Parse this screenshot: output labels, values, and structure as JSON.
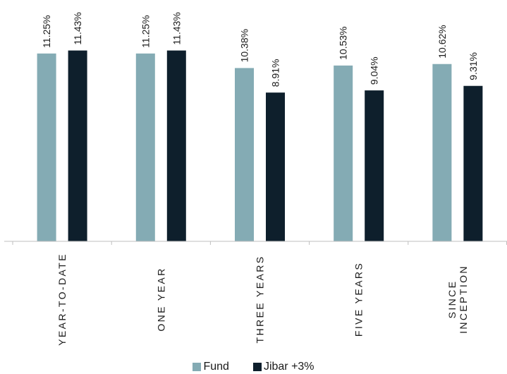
{
  "chart_data": {
    "type": "bar",
    "categories": [
      "YEAR-TO-DATE",
      "ONE YEAR",
      "THREE YEARS",
      "FIVE YEARS",
      "SINCE INCEPTION"
    ],
    "series": [
      {
        "name": "Fund",
        "color": "#84abb4",
        "values": [
          11.25,
          11.25,
          10.38,
          10.53,
          10.62
        ],
        "labels": [
          "11.25%",
          "11.25%",
          "10.38%",
          "10.53%",
          "10.62%"
        ]
      },
      {
        "name": "Jibar +3%",
        "color": "#0e1f2c",
        "values": [
          11.43,
          11.43,
          8.91,
          9.04,
          9.31
        ],
        "labels": [
          "11.43%",
          "11.43%",
          "8.91%",
          "9.04%",
          "9.31%"
        ]
      }
    ],
    "ylim": [
      0,
      12
    ],
    "grid": false,
    "legend_position": "bottom"
  }
}
